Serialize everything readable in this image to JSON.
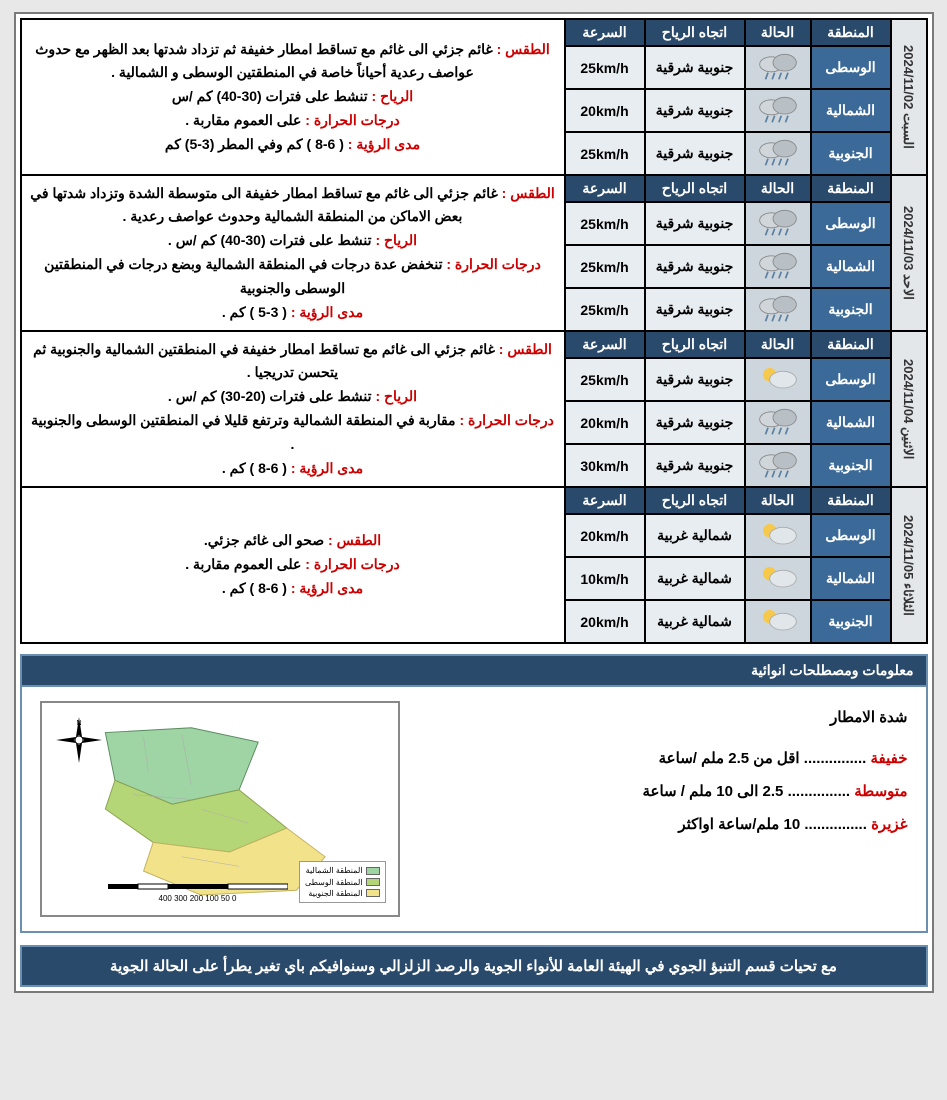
{
  "colors": {
    "header_dark": "#2a4a6b",
    "region_bg": "#3b6a99",
    "icon_bg": "#cdd6dc",
    "cell_bg": "#e8edf1",
    "label_red": "#c00"
  },
  "headers": {
    "region": "المنطقة",
    "condition": "الحالة",
    "wind_dir": "اتجاه الرياح",
    "speed": "السرعة"
  },
  "regions": {
    "c": "الوسطى",
    "n": "الشمالية",
    "s": "الجنوبية"
  },
  "labels": {
    "weather": "الطقس :",
    "wind": "الرياح :",
    "temp": "درجات الحرارة :",
    "visibility": "مدى الرؤية :"
  },
  "days": [
    {
      "date": "السبت 2024/11/02",
      "rows": [
        {
          "region": "c",
          "icon": "rain",
          "wind": "جنوبية شرقية",
          "speed": "25km/h"
        },
        {
          "region": "n",
          "icon": "rain",
          "wind": "جنوبية شرقية",
          "speed": "20km/h"
        },
        {
          "region": "s",
          "icon": "rain",
          "wind": "جنوبية شرقية",
          "speed": "25km/h"
        }
      ],
      "weather": "غائم جزئي الى غائم مع تساقط امطار خفيفة ثم تزداد شدتها بعد الظهر مع حدوث عواصف رعدية أحياناً خاصة في المنطقتين الوسطى و الشمالية .",
      "wind": "تنشط على فترات (30-40) كم /س",
      "temp": "على العموم مقاربة .",
      "visibility": "( 6-8 ) كم وفي المطر (3-5) كم"
    },
    {
      "date": "الاحد 2024/11/03",
      "rows": [
        {
          "region": "c",
          "icon": "rain",
          "wind": "جنوبية شرقية",
          "speed": "25km/h"
        },
        {
          "region": "n",
          "icon": "rain",
          "wind": "جنوبية شرقية",
          "speed": "25km/h"
        },
        {
          "region": "s",
          "icon": "rain",
          "wind": "جنوبية شرقية",
          "speed": "25km/h"
        }
      ],
      "weather": "غائم جزئي الى غائم  مع تساقط امطار خفيفة الى متوسطة الشدة وتزداد شدتها في بعض الاماكن من المنطقة الشمالية وحدوث عواصف رعدية .",
      "wind": "تنشط على فترات (30-40) كم /س .",
      "temp": "تنخفض عدة درجات في المنطقة الشمالية وبضع درجات في المنطقتين  الوسطى والجنوبية",
      "visibility": "( 3-5 ) كم ."
    },
    {
      "date": "الاثنين 2024/11/04",
      "rows": [
        {
          "region": "c",
          "icon": "partly",
          "wind": "جنوبية شرقية",
          "speed": "25km/h"
        },
        {
          "region": "n",
          "icon": "rain",
          "wind": "جنوبية شرقية",
          "speed": "20km/h"
        },
        {
          "region": "s",
          "icon": "rain",
          "wind": "جنوبية شرقية",
          "speed": "30km/h"
        }
      ],
      "weather": "غائم جزئي  الى غائم مع تساقط امطار خفيفة  في المنطقتين الشمالية  والجنوبية ثم يتحسن تدريجيا .",
      "wind": "تنشط على فترات (20-30) كم /س .",
      "temp": "مقاربة في المنطقة الشمالية وترتفع قليلا  في المنطقتين الوسطى والجنوبية .",
      "visibility": "( 6-8 ) كم ."
    },
    {
      "date": "الثلاثاء 2024/11/05",
      "rows": [
        {
          "region": "c",
          "icon": "partly",
          "wind": "شمالية غربية",
          "speed": "20km/h"
        },
        {
          "region": "n",
          "icon": "partly",
          "wind": "شمالية غربية",
          "speed": "10km/h"
        },
        {
          "region": "s",
          "icon": "partly",
          "wind": "شمالية غربية",
          "speed": "20km/h"
        }
      ],
      "weather": "صحو الى غائم جزئي.",
      "wind": "",
      "temp": "على العموم مقاربة  .",
      "visibility": "( 6-8 ) كم ."
    }
  ],
  "info_title": "معلومات ومصطلحات انوائية",
  "rain_intensity": {
    "title": "شدة الامطار",
    "light": {
      "label": "خفيفة",
      "dots": " ............... ",
      "value": "اقل من 2.5  ملم /ساعة"
    },
    "moderate": {
      "label": "متوسطة",
      "dots": " ............... ",
      "value": "2.5 الى 10 ملم / ساعة"
    },
    "heavy": {
      "label": "غزيرة",
      "dots": " ............... ",
      "value": "10 ملم/ساعة اواكثر"
    }
  },
  "map_legend": {
    "n": "المنطقة الشمالية",
    "c": "المنطقة الوسطى",
    "s": "المنطقة الجنوبية"
  },
  "map_colors": {
    "n": "#9fd4a4",
    "c": "#b5d676",
    "s": "#f2e38a"
  },
  "scalebar": "0   50  100        200        300        400",
  "footer": "مع تحيات قسم التنبؤ الجوي في الهيئة العامة للأنواء الجوية والرصد الزلزالي وسنوافيكم  باي تغير يطرأ على الحالة الجوية"
}
